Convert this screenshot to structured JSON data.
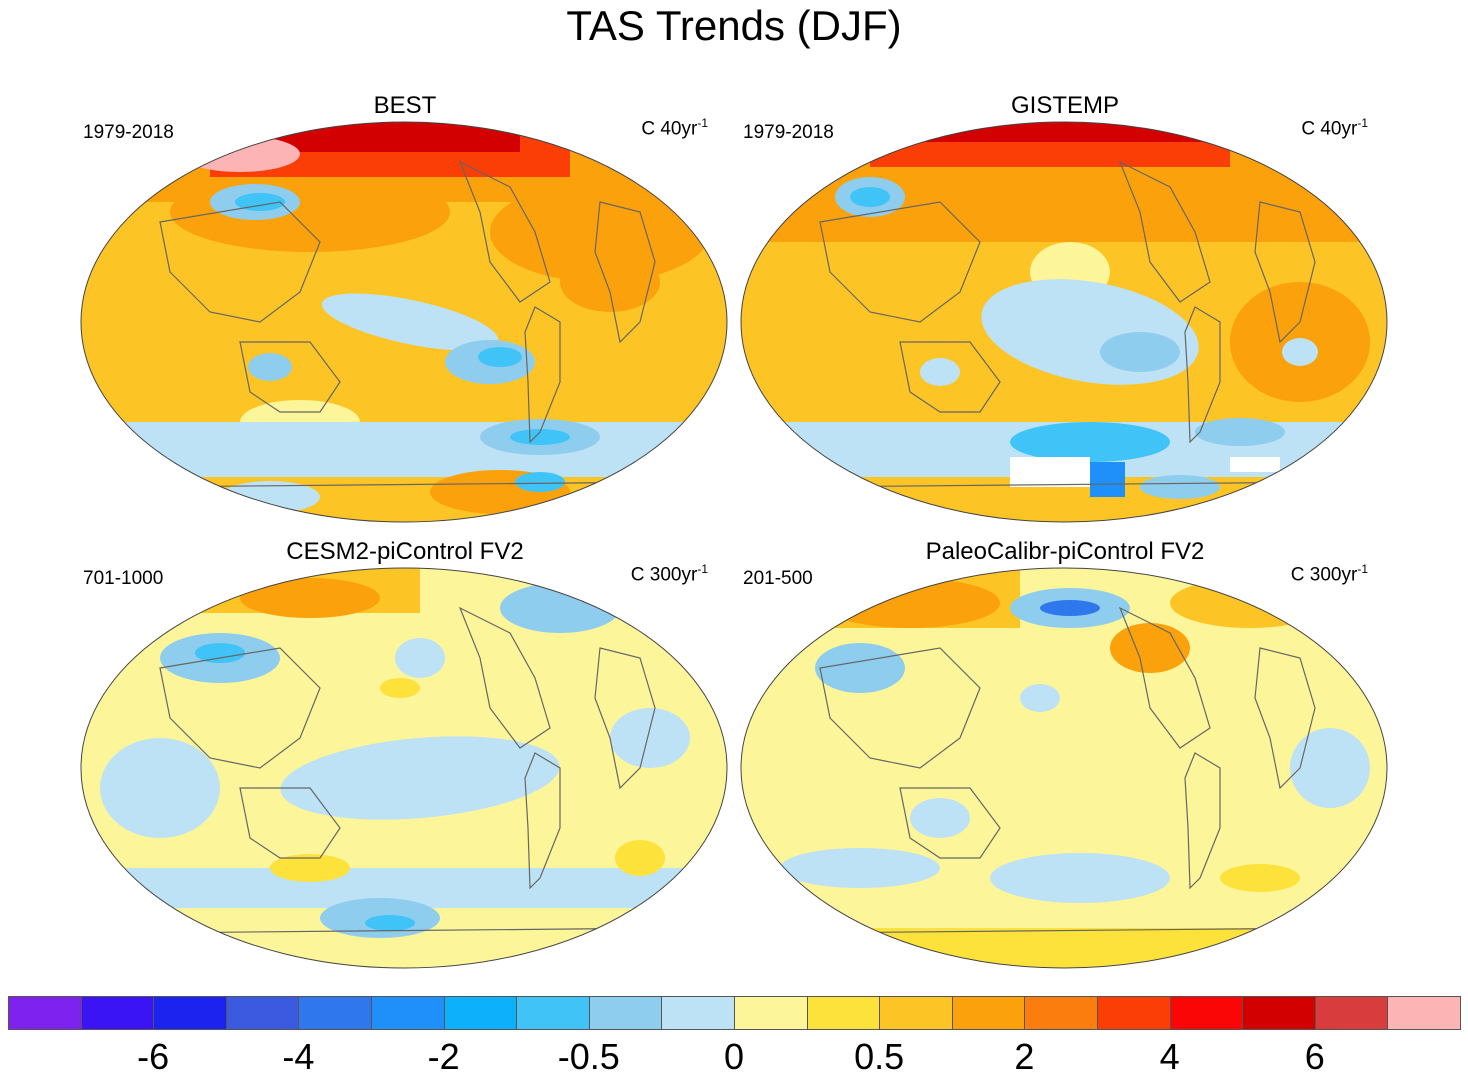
{
  "title": "TAS Trends (DJF)",
  "panels": [
    {
      "title": "BEST",
      "period": "1979-2018",
      "units_base": "C 40yr",
      "units_exp": "-1"
    },
    {
      "title": "GISTEMP",
      "period": "1979-2018",
      "units_base": "C 40yr",
      "units_exp": "-1"
    },
    {
      "title": "CESM2-piControl FV2",
      "period": "701-1000",
      "units_base": "C 300yr",
      "units_exp": "-1"
    },
    {
      "title": "PaleoCalibr-piControl FV2",
      "period": "201-500",
      "units_base": "C 300yr",
      "units_exp": "-1"
    }
  ],
  "colorbar": {
    "colors": [
      "#7e22f0",
      "#3a14f5",
      "#1d23ee",
      "#3c5ae0",
      "#2e77ec",
      "#1f8ff9",
      "#0db1fb",
      "#40c4f8",
      "#8fcdee",
      "#bde1f5",
      "#fdf59a",
      "#fde23c",
      "#fcc425",
      "#fba10c",
      "#fb7d0e",
      "#fb3d06",
      "#fb0606",
      "#d30000",
      "#d83c3c",
      "#fdb4b4"
    ],
    "labels": [
      {
        "text": "-6",
        "boundary": 2
      },
      {
        "text": "-4",
        "boundary": 4
      },
      {
        "text": "-2",
        "boundary": 6
      },
      {
        "text": "-0.5",
        "boundary": 8
      },
      {
        "text": "0",
        "boundary": 10
      },
      {
        "text": "0.5",
        "boundary": 12
      },
      {
        "text": "2",
        "boundary": 14
      },
      {
        "text": "4",
        "boundary": 16
      },
      {
        "text": "6",
        "boundary": 18
      }
    ]
  }
}
